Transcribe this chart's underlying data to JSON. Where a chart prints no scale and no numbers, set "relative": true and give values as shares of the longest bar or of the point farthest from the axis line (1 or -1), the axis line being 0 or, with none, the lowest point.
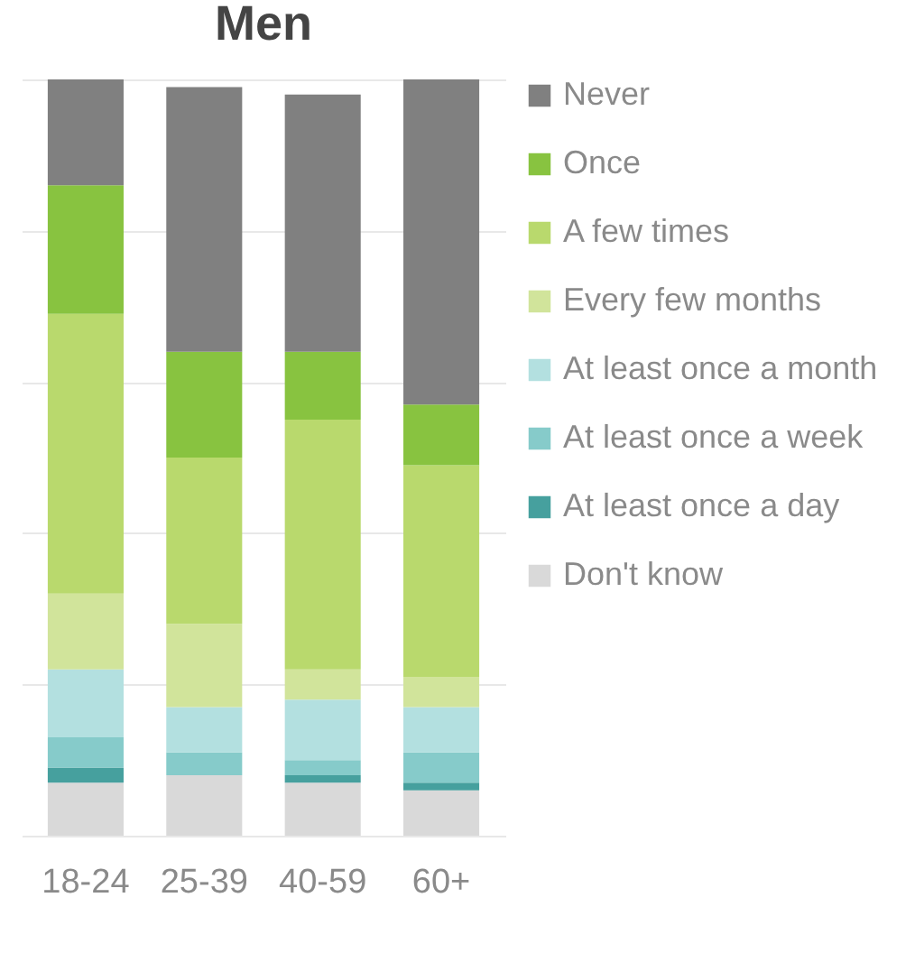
{
  "chart_data": {
    "type": "bar",
    "title": "Men",
    "categories": [
      "18-24",
      "25-39",
      "40-59",
      "60+"
    ],
    "stacked": true,
    "relative": true,
    "grid": "y",
    "legend": "right",
    "series": [
      {
        "name": "Don't know",
        "color": "#d9d9d9",
        "values": [
          0.07,
          0.08,
          0.07,
          0.06
        ]
      },
      {
        "name": "At least once a day",
        "color": "#46a09e",
        "values": [
          0.02,
          null,
          0.01,
          0.01
        ]
      },
      {
        "name": "At least once a week",
        "color": "#86cbca",
        "values": [
          0.04,
          0.03,
          0.02,
          0.04
        ]
      },
      {
        "name": "At least once a month",
        "color": "#b3e0e0",
        "values": [
          0.09,
          0.06,
          0.08,
          0.06
        ]
      },
      {
        "name": "Every few months",
        "color": "#d1e49b",
        "values": [
          0.1,
          0.11,
          0.04,
          0.04
        ]
      },
      {
        "name": "A few times",
        "color": "#b9d96d",
        "values": [
          0.37,
          0.22,
          0.33,
          0.28
        ]
      },
      {
        "name": "Once",
        "color": "#88c340",
        "values": [
          0.17,
          0.14,
          0.09,
          0.08
        ]
      },
      {
        "name": "Never",
        "color": "#808080",
        "values": [
          0.14,
          0.35,
          0.34,
          0.43
        ]
      }
    ]
  }
}
